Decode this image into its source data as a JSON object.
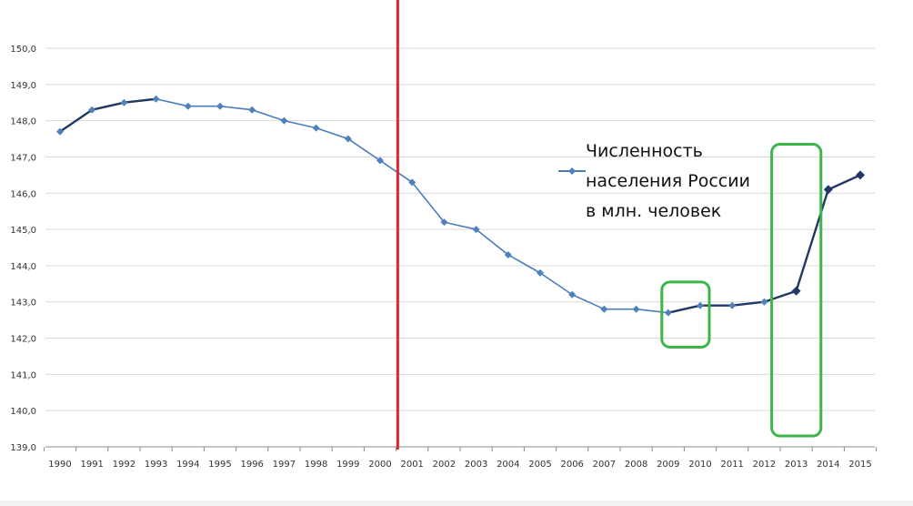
{
  "chart_data": {
    "type": "line",
    "categories": [
      "1990",
      "1991",
      "1992",
      "1993",
      "1994",
      "1995",
      "1996",
      "1997",
      "1998",
      "1999",
      "2000",
      "2001",
      "2002",
      "2003",
      "2004",
      "2005",
      "2006",
      "2007",
      "2008",
      "2009",
      "2010",
      "2011",
      "2012",
      "2013",
      "2014",
      "2015"
    ],
    "series": [
      {
        "name": "Численность населения России в млн. человек",
        "values": [
          147.7,
          148.3,
          148.5,
          148.6,
          148.4,
          148.4,
          148.3,
          148.0,
          147.8,
          147.5,
          146.9,
          146.3,
          145.2,
          145.0,
          144.3,
          143.8,
          143.2,
          142.8,
          142.8,
          142.7,
          142.9,
          142.9,
          143.0,
          143.3,
          146.1,
          146.5
        ]
      }
    ],
    "legend_lines": [
      "Численность",
      "населения России",
      "в млн. человек"
    ],
    "ylim": [
      139.0,
      150.0
    ],
    "yticks": [
      "139,0",
      "140,0",
      "141,0",
      "142,0",
      "143,0",
      "144,0",
      "145,0",
      "146,0",
      "147,0",
      "148,0",
      "149,0",
      "150,0"
    ],
    "grid": true,
    "legend_position": "right",
    "colors": {
      "line_light": "#4a7ebb",
      "line_dark": "#1f3864",
      "marker": "#4f81bd",
      "red_marker": "#e0242a",
      "highlight": "#3cb54a",
      "grid": "#d9d9d9"
    },
    "vertical_marker_year": "2000",
    "highlight_boxes": [
      {
        "from": "2009",
        "to": "2010"
      },
      {
        "from": "2013",
        "to": "2014"
      }
    ]
  }
}
